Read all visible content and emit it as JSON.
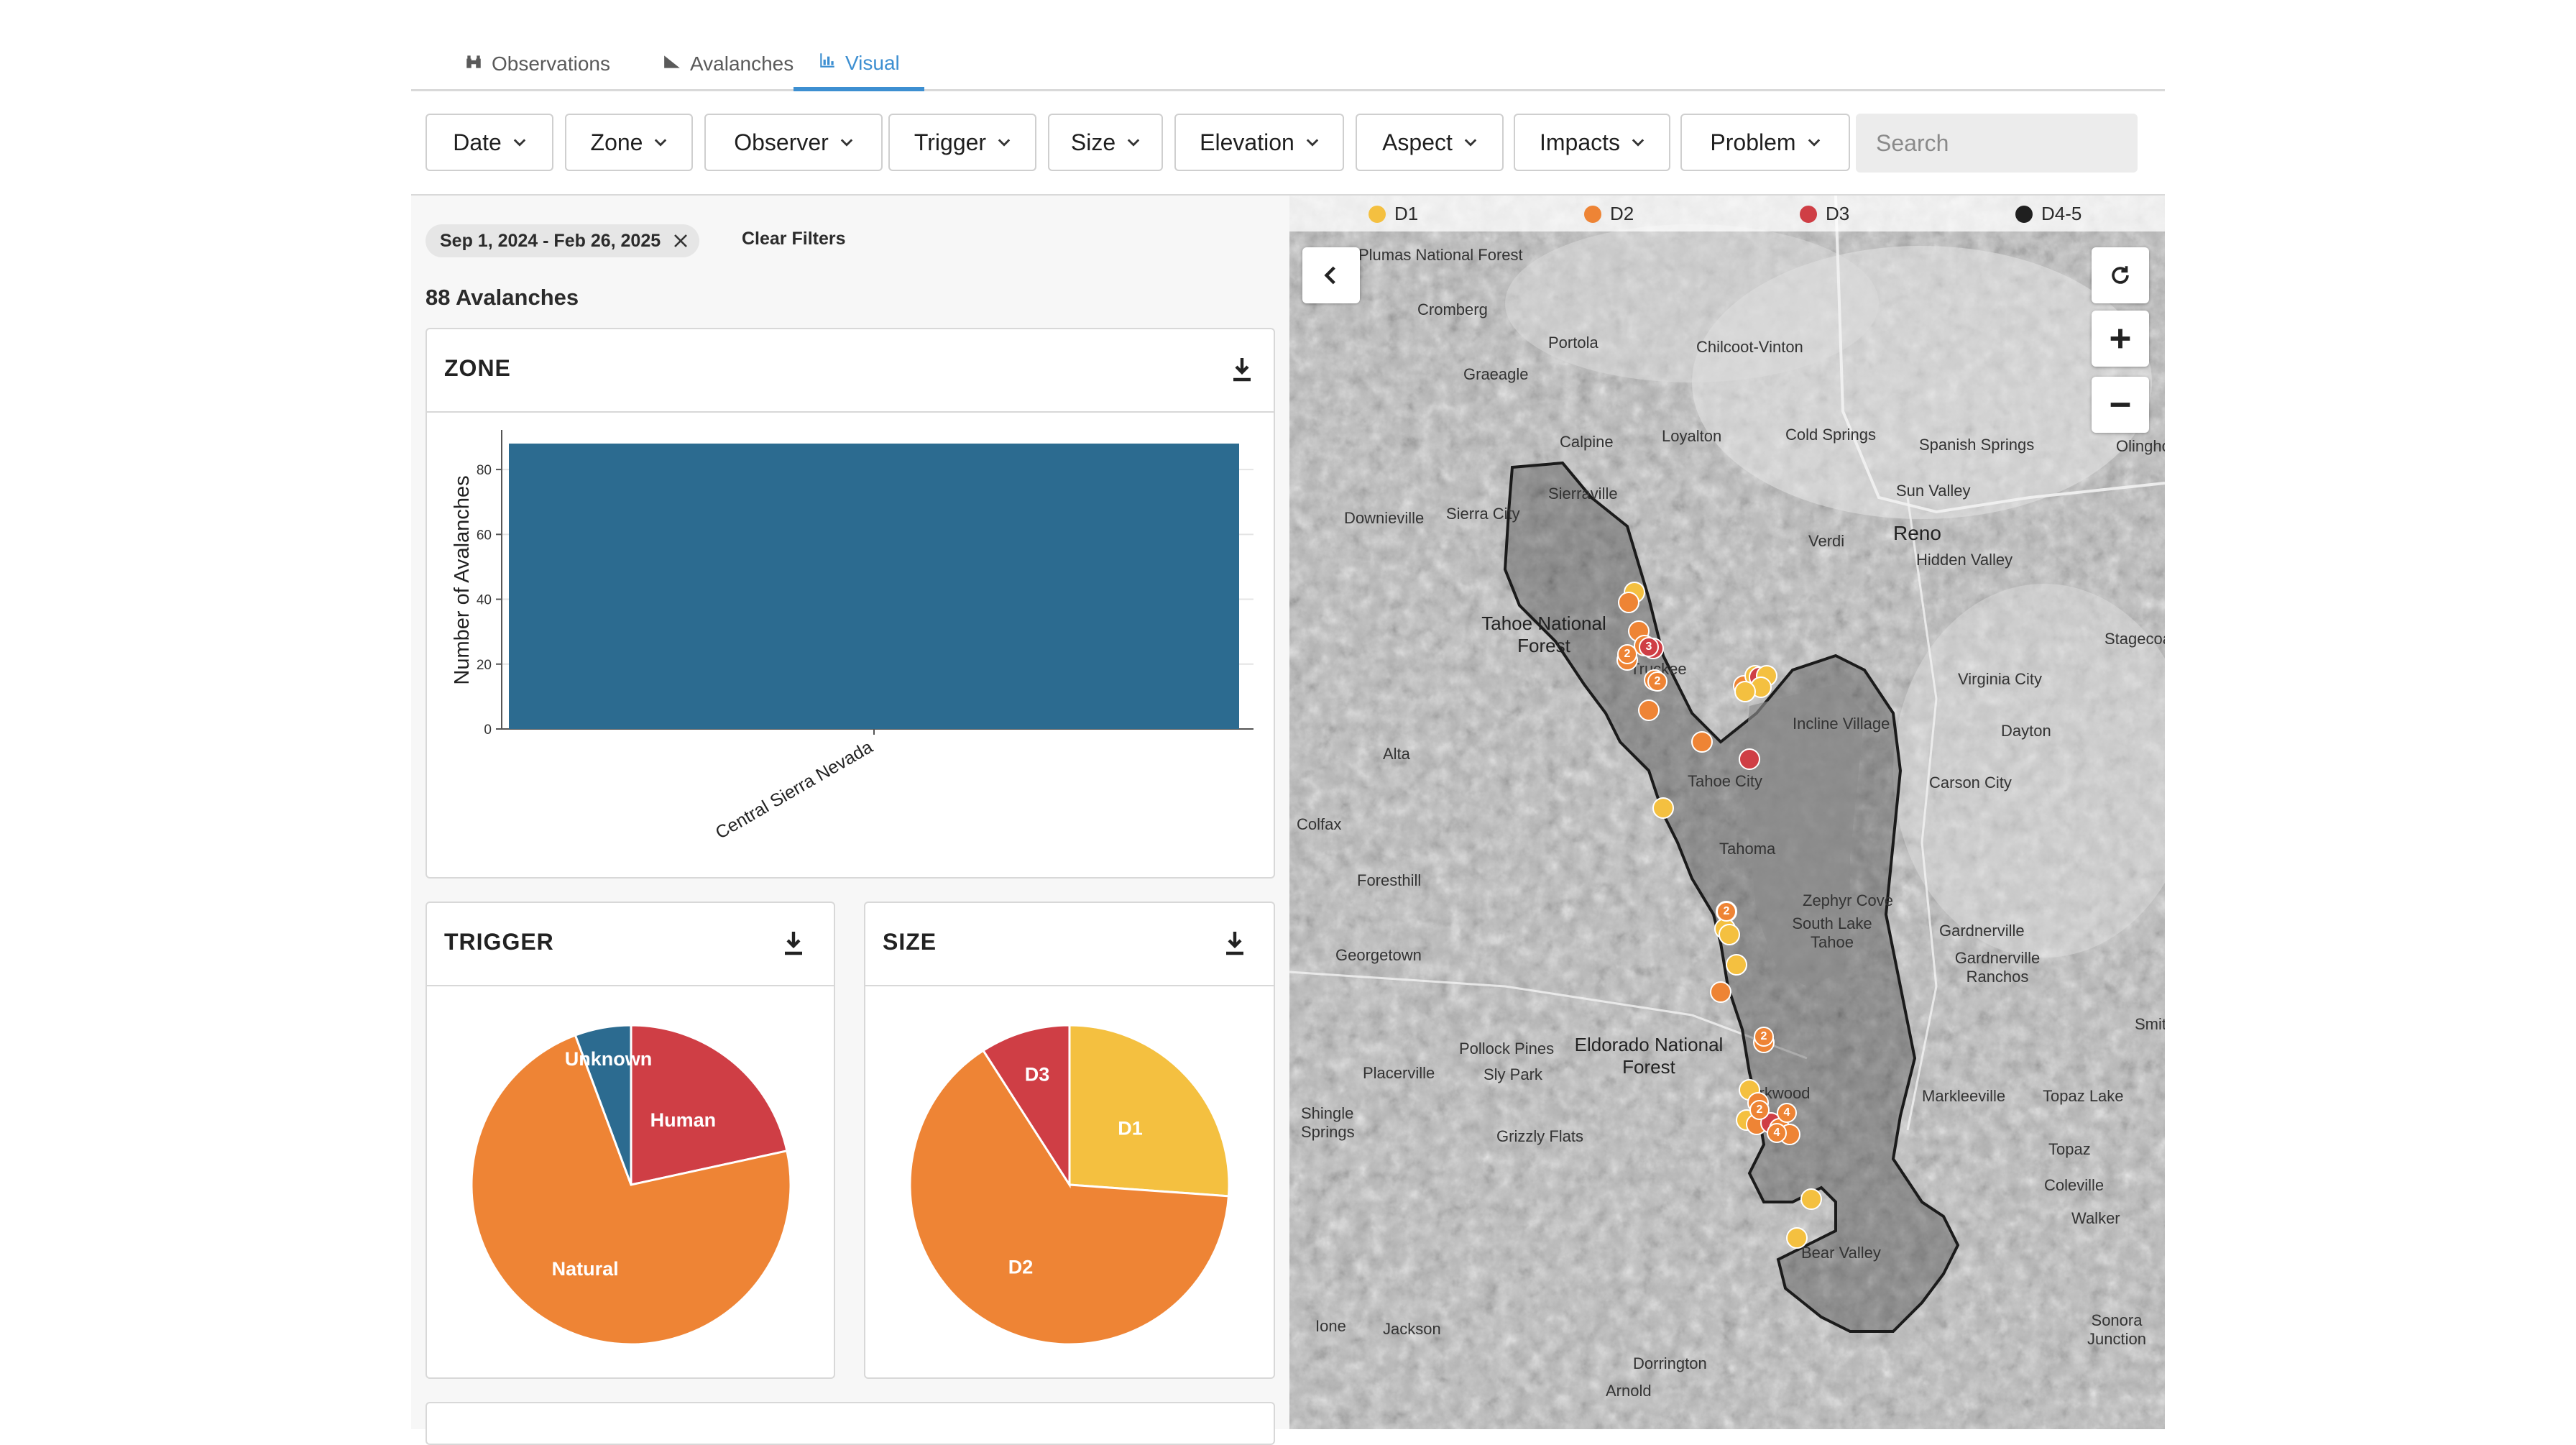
{
  "tabs": [
    {
      "label": "Observations",
      "icon": "binoculars-icon"
    },
    {
      "label": "Avalanches",
      "icon": "avalanche-icon"
    },
    {
      "label": "Visual",
      "icon": "bar-chart-icon",
      "active": true
    }
  ],
  "filters": [
    "Date",
    "Zone",
    "Observer",
    "Trigger",
    "Size",
    "Elevation",
    "Aspect",
    "Impacts",
    "Problem"
  ],
  "search": {
    "placeholder": "Search"
  },
  "active_filter_chip": "Sep 1, 2024 - Feb 26, 2025",
  "clear_filters_label": "Clear Filters",
  "avalanche_count_label": "88 Avalanches",
  "cards": {
    "zone": {
      "title": "ZONE"
    },
    "trigger": {
      "title": "TRIGGER"
    },
    "size": {
      "title": "SIZE"
    }
  },
  "chart_data": [
    {
      "type": "bar",
      "title": "ZONE",
      "categories": [
        "Central Sierra Nevada"
      ],
      "values": [
        88
      ],
      "xlabel": "",
      "ylabel": "Number of Avalanches",
      "ylim": [
        0,
        90
      ],
      "yticks": [
        0,
        20,
        40,
        60,
        80
      ],
      "grid": true,
      "color": "#2c6b90"
    },
    {
      "type": "pie",
      "title": "TRIGGER",
      "categories": [
        "Human",
        "Natural",
        "Unknown"
      ],
      "values": [
        19,
        64,
        5
      ],
      "colors": [
        "#cf3e45",
        "#ee8435",
        "#2c6b90"
      ]
    },
    {
      "type": "pie",
      "title": "SIZE",
      "categories": [
        "D1",
        "D2",
        "D3"
      ],
      "values": [
        23,
        57,
        8
      ],
      "colors": [
        "#f4c040",
        "#ee8435",
        "#cf3e45"
      ]
    }
  ],
  "map": {
    "legend": [
      {
        "label": "D1",
        "color": "#f4c040"
      },
      {
        "label": "D2",
        "color": "#ee8435"
      },
      {
        "label": "D3",
        "color": "#cf3e45"
      },
      {
        "label": "D4-5",
        "color": "#1f1f1f"
      }
    ],
    "places": [
      "Plumas National Forest",
      "Cromberg",
      "Portola",
      "Chilcoot-Vinton",
      "Graeagle",
      "Calpine",
      "Loyalton",
      "Cold Springs",
      "Spanish Springs",
      "Sun Valley",
      "Olinghouse",
      "Sierraville",
      "Downieville",
      "Sierra City",
      "Verdi",
      "Reno",
      "Hidden Valley",
      "Tahoe National Forest",
      "Truckee",
      "Stagecoach",
      "Virginia City",
      "Incline Village",
      "Dayton",
      "Alta",
      "Tahoe City",
      "Carson City",
      "Colfax",
      "Tahoma",
      "Foresthill",
      "Zephyr Cove",
      "Gardnerville",
      "South Lake Tahoe",
      "Gardnerville Ranchos",
      "Georgetown",
      "Eldorado National Forest",
      "Pollock Pines",
      "Sly Park",
      "Placerville",
      "Kirkwood",
      "Markleeville",
      "Topaz Lake",
      "Shingle Springs",
      "Grizzly Flats",
      "Topaz",
      "Coleville",
      "Walker",
      "Bear Valley",
      "Ione",
      "Jackson",
      "Sonora Junction",
      "Dorrington",
      "Arnold",
      "Smith"
    ],
    "cluster_counts": [
      "2",
      "3",
      "2",
      "2",
      "2",
      "2",
      "4",
      "4"
    ]
  }
}
